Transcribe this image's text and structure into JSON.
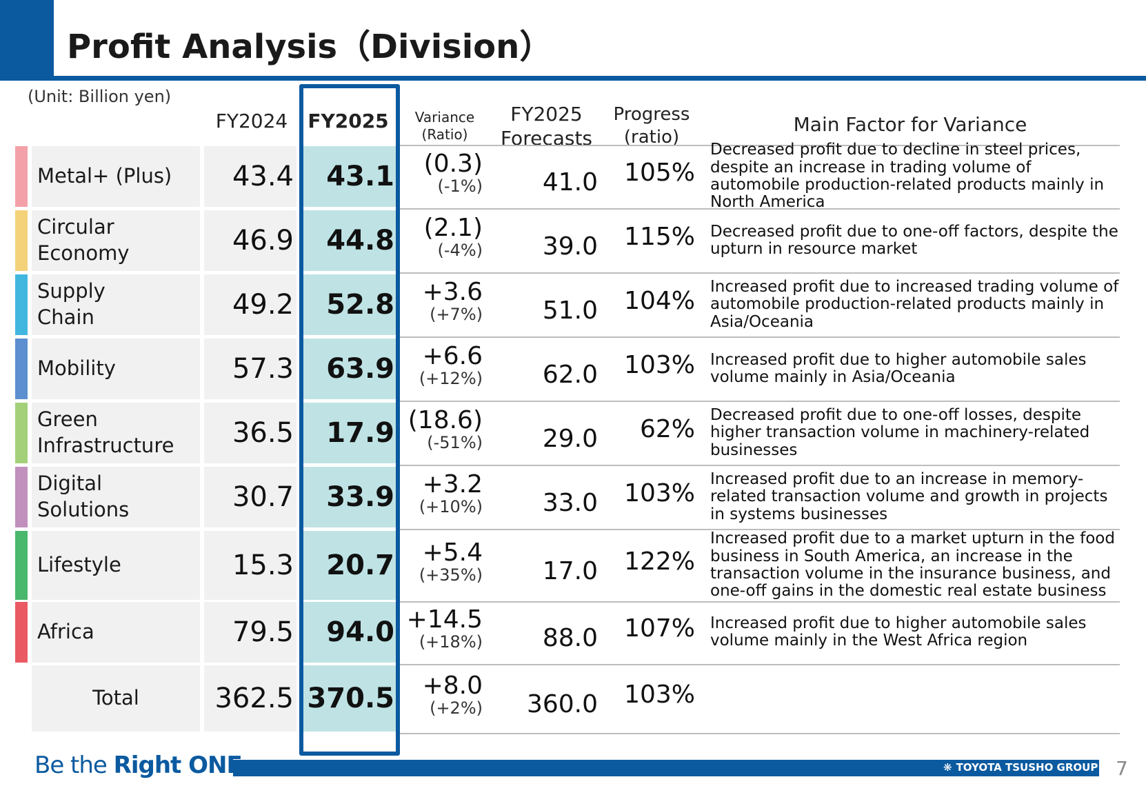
{
  "page": {
    "title": "Profit Analysis（Division）",
    "unit": "(Unit: Billion yen)",
    "page_number": "7"
  },
  "header": {
    "fy2024": "FY2024",
    "fy2025": "FY2025",
    "variance": "Variance",
    "variance_sub": "(Ratio)",
    "forecast_line1": "FY2025",
    "forecast_line2": "Forecasts",
    "progress_line1": "Progress",
    "progress_line2": "(ratio)",
    "main_factor": "Main Factor for Variance"
  },
  "rows": [
    {
      "name": "Metal+ (Plus)",
      "color": "#f4a0a8",
      "fy2024": "43.4",
      "fy2025": "43.1",
      "variance": "(0.3)",
      "ratio": "(-1%)",
      "forecast": "41.0",
      "progress": "105%",
      "factor": "Decreased profit due to decline in steel prices, despite an increase in trading volume of automobile production-related products mainly in North America"
    },
    {
      "name": "Circular\nEconomy",
      "color": "#f3d27a",
      "fy2024": "46.9",
      "fy2025": "44.8",
      "variance": "(2.1)",
      "ratio": "(-4%)",
      "forecast": "39.0",
      "progress": "115%",
      "factor": "Decreased profit due to one-off factors, despite the upturn in resource market"
    },
    {
      "name": "Supply\nChain",
      "color": "#41b7e0",
      "fy2024": "49.2",
      "fy2025": "52.8",
      "variance": "+3.6",
      "ratio": "(+7%)",
      "forecast": "51.0",
      "progress": "104%",
      "factor": "Increased profit due to increased trading volume of automobile production-related products mainly in Asia/Oceania"
    },
    {
      "name": "Mobility",
      "color": "#5b8fd0",
      "fy2024": "57.3",
      "fy2025": "63.9",
      "variance": "+6.6",
      "ratio": "(+12%)",
      "forecast": "62.0",
      "progress": "103%",
      "factor": "Increased profit due to higher automobile sales volume mainly in Asia/Oceania"
    },
    {
      "name": "Green\nInfrastructure",
      "color": "#a4d07a",
      "fy2024": "36.5",
      "fy2025": "17.9",
      "variance": "(18.6)",
      "ratio": "(-51%)",
      "forecast": "29.0",
      "progress": "62%",
      "factor": "Decreased profit due to one-off losses, despite higher transaction volume in machinery-related businesses"
    },
    {
      "name": "Digital\nSolutions",
      "color": "#c190bd",
      "fy2024": "30.7",
      "fy2025": "33.9",
      "variance": "+3.2",
      "ratio": "(+10%)",
      "forecast": "33.0",
      "progress": "103%",
      "factor": "Increased profit due to an increase in memory-related transaction volume and growth in projects in systems businesses"
    },
    {
      "name": "Lifestyle",
      "color": "#49b86c",
      "fy2024": "15.3",
      "fy2025": "20.7",
      "variance": "+5.4",
      "ratio": "(+35%)",
      "forecast": "17.0",
      "progress": "122%",
      "factor": "Increased profit due to a market upturn in the food business in South America, an increase in the transaction volume in the insurance business, and one-off gains in the domestic real estate business"
    },
    {
      "name": "Africa",
      "color": "#ea5a63",
      "fy2024": "79.5",
      "fy2025": "94.0",
      "variance": "+14.5",
      "ratio": "(+18%)",
      "forecast": "88.0",
      "progress": "107%",
      "factor": "Increased profit due to higher automobile sales volume mainly in the West Africa region"
    }
  ],
  "total": {
    "name": "Total",
    "fy2024": "362.5",
    "fy2025": "370.5",
    "variance": "+8.0",
    "ratio": "(+2%)",
    "forecast": "360.0",
    "progress": "103%"
  },
  "footer": {
    "slogan_part1": "Be the ",
    "slogan_part2": "Right ONE",
    "logo_text": "TOYOTA TSUSHO GROUP"
  },
  "colors": {
    "brand_blue": "#0b5aa0",
    "fy2025_fill": "#bfe3e5",
    "name_fill": "#f1f1f1"
  }
}
